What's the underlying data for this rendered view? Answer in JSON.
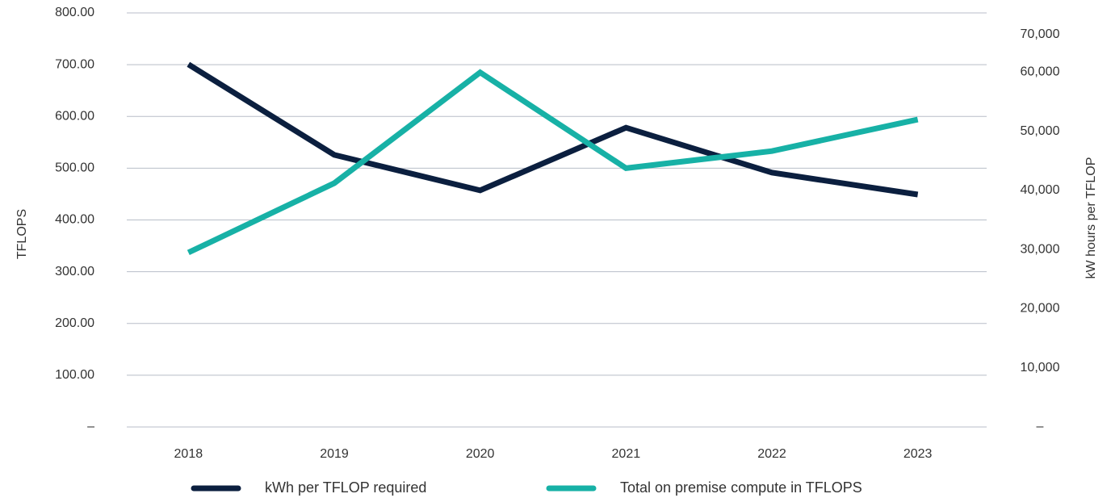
{
  "chart_data": {
    "type": "line",
    "categories": [
      "2018",
      "2019",
      "2020",
      "2021",
      "2022",
      "2023"
    ],
    "ylabel": "TFLOPS",
    "y2label": "kW hours per TFLOP",
    "ylim": [
      0,
      800
    ],
    "yticks": [
      {
        "value": 0,
        "label": "–"
      },
      {
        "value": 100,
        "label": "100.00"
      },
      {
        "value": 200,
        "label": "200.00"
      },
      {
        "value": 300,
        "label": "300.00"
      },
      {
        "value": 400,
        "label": "400.00"
      },
      {
        "value": 500,
        "label": "500.00"
      },
      {
        "value": 600,
        "label": "600.00"
      },
      {
        "value": 700,
        "label": "700.00"
      },
      {
        "value": 800,
        "label": "800.00"
      }
    ],
    "y2lim": [
      0,
      70000
    ],
    "y2ticks": [
      {
        "value": 0,
        "label": "–"
      },
      {
        "value": 10000,
        "label": "10,000"
      },
      {
        "value": 20000,
        "label": "20,000"
      },
      {
        "value": 30000,
        "label": "30,000"
      },
      {
        "value": 40000,
        "label": "40,000"
      },
      {
        "value": 50000,
        "label": "50,000"
      },
      {
        "value": 60000,
        "label": "60,000"
      },
      {
        "value": 70000,
        "label": "70,000"
      }
    ],
    "grid": true,
    "legend": "bottom",
    "series": [
      {
        "name": "kWh per TFLOP required",
        "color": "#0b1f3f",
        "axis": "y2",
        "values": [
          61300,
          46000,
          40000,
          50600,
          43000,
          39300
        ]
      },
      {
        "name": "Total on premise compute in TFLOPS",
        "color": "#17b1a6",
        "axis": "y",
        "values": [
          337,
          471,
          685,
          500,
          533,
          594
        ]
      }
    ]
  }
}
